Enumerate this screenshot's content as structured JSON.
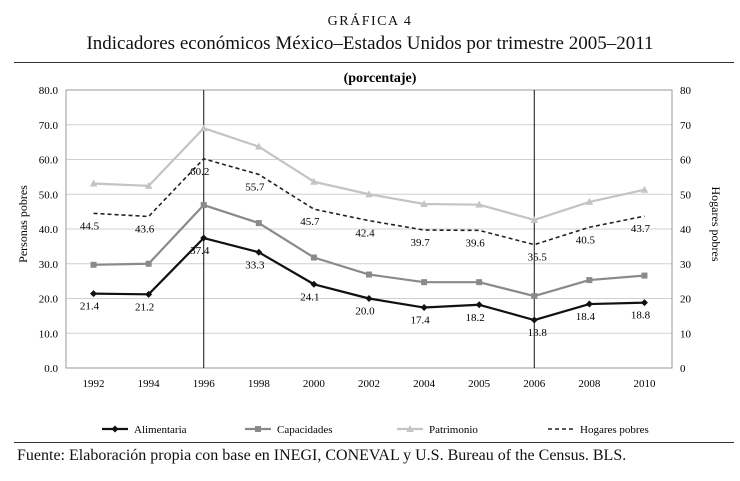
{
  "header": {
    "kicker": "GRÁFICA 4",
    "title": "Indicadores económicos México–Estados Unidos por trimestre 2005–2011"
  },
  "footer": {
    "source": "Fuente: Elaboración propia con base en INEGI, CONEVAL y U.S. Bureau of the Census. BLS."
  },
  "chart_data": {
    "type": "line",
    "title": "(porcentaje)",
    "ylabel": "Personas pobres",
    "y2label": "Hogares pobres",
    "categories": [
      "1992",
      "1994",
      "1996",
      "1998",
      "2000",
      "2002",
      "2004",
      "2005",
      "2006",
      "2008",
      "2010"
    ],
    "ylim": [
      0,
      80
    ],
    "yticks": [
      "0.0",
      "10.0",
      "20.0",
      "30.0",
      "40.0",
      "50.0",
      "60.0",
      "70.0",
      "80.0"
    ],
    "y2ticks": [
      "0",
      "10",
      "20",
      "30",
      "40",
      "50",
      "60",
      "70",
      "80"
    ],
    "reference_lines": [
      "1996",
      "2006"
    ],
    "legend_position": "bottom",
    "colors": {
      "alimentaria": "#111111",
      "capacidades": "#8a8a8a",
      "patrimonio": "#c4c4c4",
      "hogares": "#222222",
      "plot_border": "#9a9a9a",
      "grid": "#d0d0d0"
    },
    "series": [
      {
        "name": "Alimentaria",
        "values": [
          21.4,
          21.2,
          37.4,
          33.3,
          24.1,
          20.0,
          17.4,
          18.2,
          13.8,
          18.4,
          18.8
        ],
        "labels": [
          "21.4",
          "21.2",
          "37.4",
          "33.3",
          "24.1",
          "20.0",
          "17.4",
          "18.2",
          "13.8",
          "18.4",
          "18.8"
        ]
      },
      {
        "name": "Capacidades",
        "values": [
          29.7,
          30.0,
          46.9,
          41.7,
          31.8,
          26.9,
          24.7,
          24.7,
          20.7,
          25.3,
          26.6
        ]
      },
      {
        "name": "Patrimonio",
        "values": [
          53.1,
          52.4,
          69.0,
          63.7,
          53.6,
          50.0,
          47.2,
          47.0,
          42.6,
          47.8,
          51.3
        ]
      },
      {
        "name": "Hogares pobres",
        "values": [
          44.5,
          43.6,
          60.2,
          55.7,
          45.7,
          42.4,
          39.7,
          39.6,
          35.5,
          40.5,
          43.7
        ],
        "labels": [
          "44.5",
          "43.6",
          "60.2",
          "55.7",
          "45.7",
          "42.4",
          "39.7",
          "39.6",
          "35.5",
          "40.5",
          "43.7"
        ]
      }
    ]
  }
}
